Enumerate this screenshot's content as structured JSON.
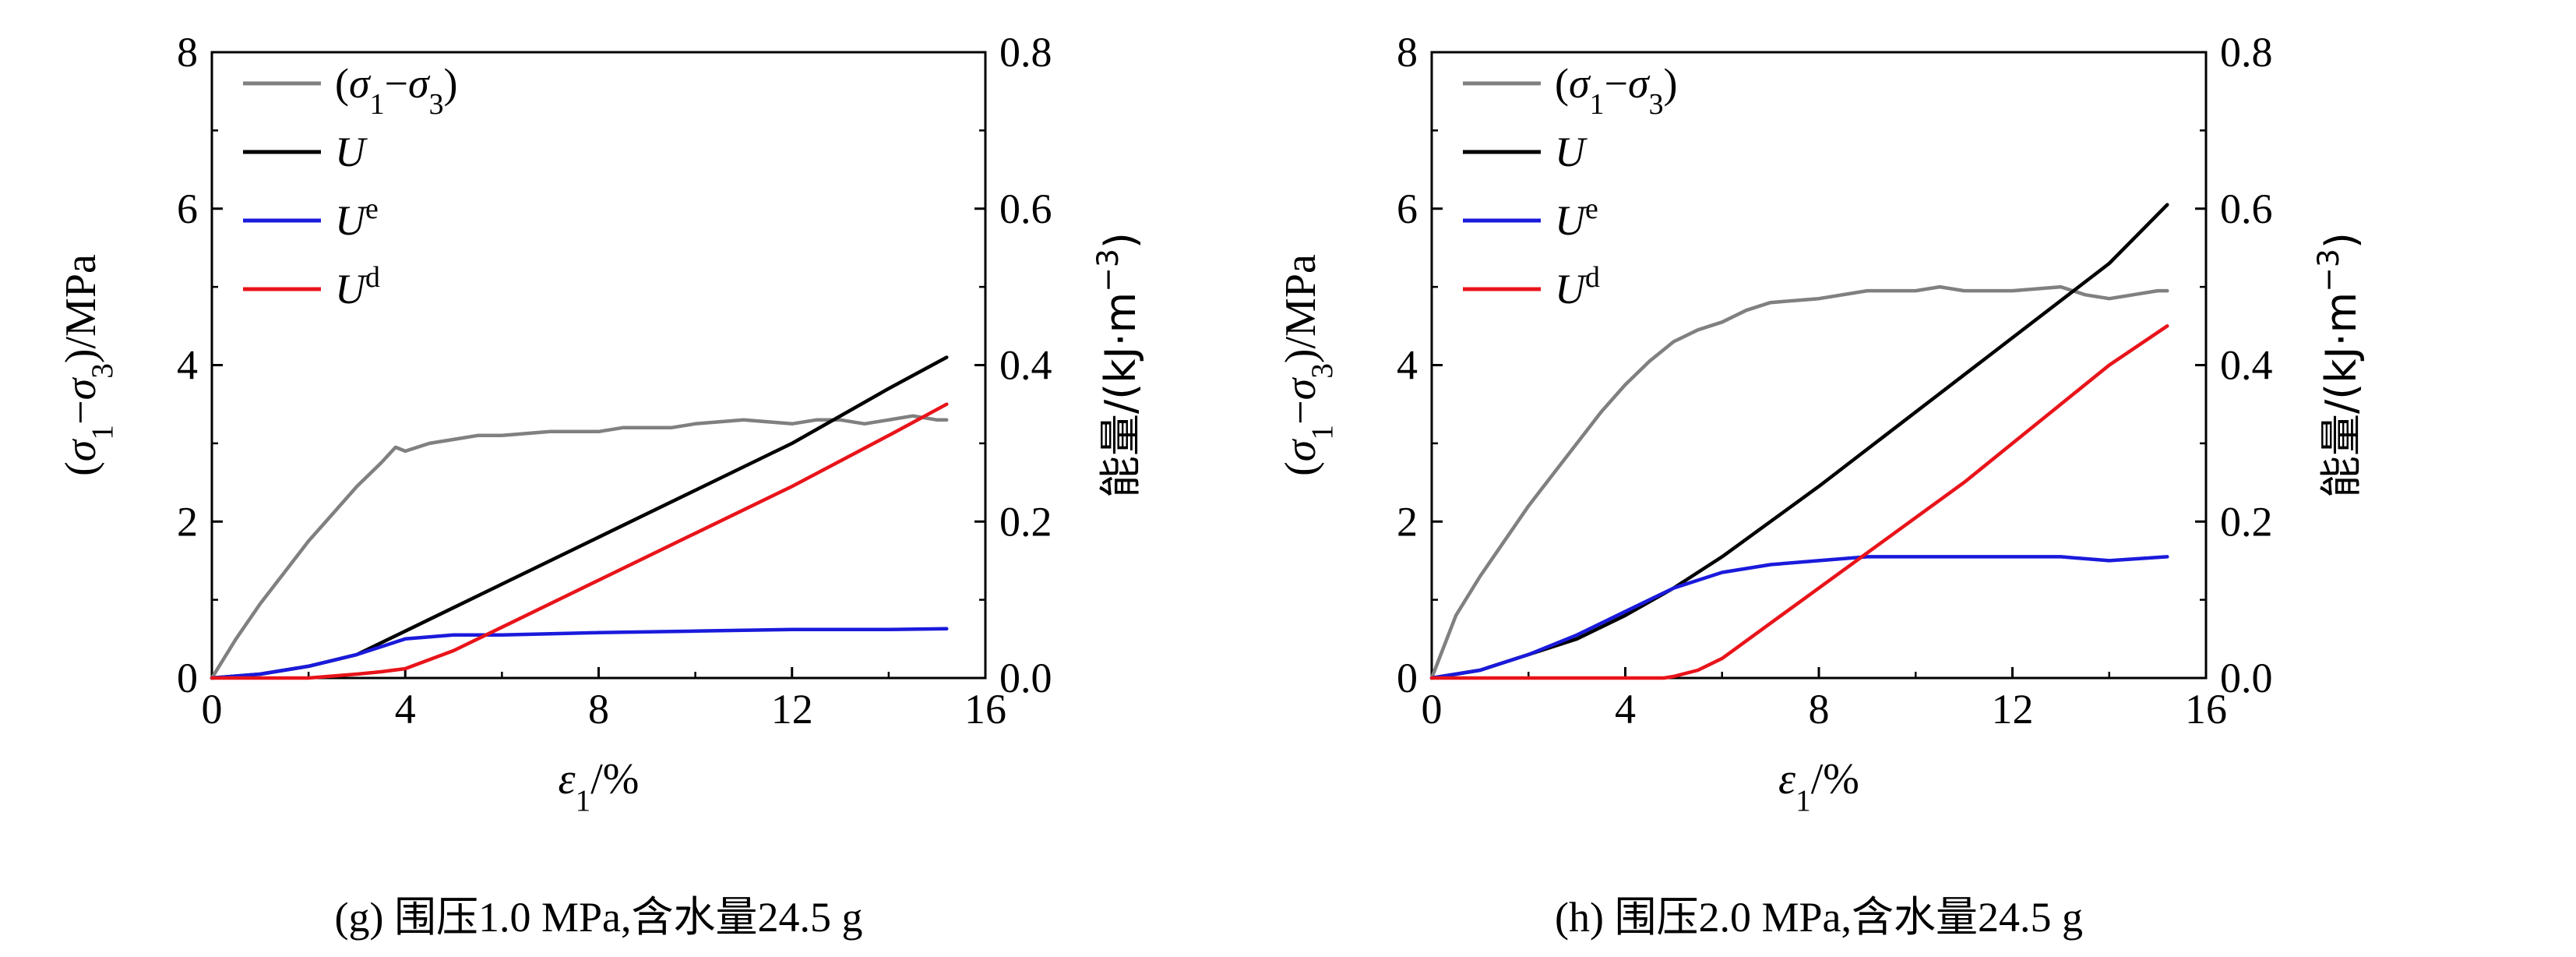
{
  "chart_data": [
    {
      "type": "line",
      "caption": "(g) 围压1.0 MPa,含水量24.5 g",
      "xlabel": "ε1/%",
      "ylabel_left": "(σ1−σ3)/MPa",
      "ylabel_right": "能量/(kJ·m−3)",
      "xlim": [
        0,
        16
      ],
      "ylim_left": [
        0,
        8
      ],
      "ylim_right": [
        0,
        0.8
      ],
      "x_ticks": [
        "0",
        "4",
        "8",
        "12",
        "16"
      ],
      "y_ticks_left": [
        "0",
        "2",
        "4",
        "6",
        "8"
      ],
      "y_ticks_right": [
        "0.0",
        "0.2",
        "0.4",
        "0.6",
        "0.8"
      ],
      "grid": false,
      "legend_position": "top-left",
      "series": [
        {
          "name": "(σ1−σ3)",
          "axis": "left",
          "color": "#808080",
          "x": [
            0,
            0.5,
            1,
            1.5,
            2,
            2.5,
            3,
            3.5,
            3.8,
            4,
            4.5,
            5,
            5.5,
            6,
            7,
            8,
            8.5,
            9,
            9.5,
            10,
            11,
            12,
            12.5,
            13,
            13.5,
            14,
            14.5,
            15,
            15.2
          ],
          "y": [
            0,
            0.5,
            0.95,
            1.35,
            1.75,
            2.1,
            2.45,
            2.75,
            2.95,
            2.9,
            3.0,
            3.05,
            3.1,
            3.1,
            3.15,
            3.15,
            3.2,
            3.2,
            3.2,
            3.25,
            3.3,
            3.25,
            3.3,
            3.3,
            3.25,
            3.3,
            3.35,
            3.3,
            3.3
          ]
        },
        {
          "name": "U",
          "axis": "right",
          "color": "#000000",
          "x": [
            0,
            1,
            2,
            3,
            4,
            5,
            6,
            8,
            10,
            12,
            14,
            15.2
          ],
          "y": [
            0,
            0.005,
            0.015,
            0.03,
            0.06,
            0.09,
            0.12,
            0.18,
            0.24,
            0.3,
            0.37,
            0.41
          ]
        },
        {
          "name": "Ue",
          "axis": "right",
          "color": "#1a1adc",
          "x": [
            0,
            1,
            2,
            3,
            4,
            5,
            6,
            8,
            10,
            12,
            14,
            15.2
          ],
          "y": [
            0,
            0.005,
            0.015,
            0.03,
            0.05,
            0.055,
            0.055,
            0.058,
            0.06,
            0.062,
            0.062,
            0.063
          ]
        },
        {
          "name": "Ud",
          "axis": "right",
          "color": "#e8141a",
          "x": [
            0,
            2,
            3,
            3.5,
            4,
            5,
            6,
            8,
            10,
            12,
            14,
            15.2
          ],
          "y": [
            0,
            0,
            0.005,
            0.008,
            0.012,
            0.035,
            0.065,
            0.125,
            0.185,
            0.245,
            0.31,
            0.35
          ]
        }
      ]
    },
    {
      "type": "line",
      "caption": "(h) 围压2.0 MPa,含水量24.5 g",
      "xlabel": "ε1/%",
      "ylabel_left": "(σ1−σ3)/MPa",
      "ylabel_right": "能量/(kJ·m−3)",
      "xlim": [
        0,
        16
      ],
      "ylim_left": [
        0,
        8
      ],
      "ylim_right": [
        0,
        0.8
      ],
      "x_ticks": [
        "0",
        "4",
        "8",
        "12",
        "16"
      ],
      "y_ticks_left": [
        "0",
        "2",
        "4",
        "6",
        "8"
      ],
      "y_ticks_right": [
        "0.0",
        "0.2",
        "0.4",
        "0.6",
        "0.8"
      ],
      "grid": false,
      "legend_position": "top-left",
      "series": [
        {
          "name": "(σ1−σ3)",
          "axis": "left",
          "color": "#808080",
          "x": [
            0,
            0.5,
            1,
            1.5,
            2,
            2.5,
            3,
            3.5,
            4,
            4.5,
            5,
            5.5,
            6,
            6.5,
            7,
            8,
            9,
            10,
            10.5,
            11,
            12,
            13,
            13.5,
            14,
            14.5,
            15,
            15.2
          ],
          "y": [
            0,
            0.8,
            1.3,
            1.75,
            2.2,
            2.6,
            3.0,
            3.4,
            3.75,
            4.05,
            4.3,
            4.45,
            4.55,
            4.7,
            4.8,
            4.85,
            4.95,
            4.95,
            5.0,
            4.95,
            4.95,
            5.0,
            4.9,
            4.85,
            4.9,
            4.95,
            4.95
          ]
        },
        {
          "name": "U",
          "axis": "right",
          "color": "#000000",
          "x": [
            0,
            1,
            2,
            3,
            4,
            5,
            6,
            8,
            10,
            12,
            14,
            15.2
          ],
          "y": [
            0,
            0.01,
            0.03,
            0.05,
            0.08,
            0.115,
            0.155,
            0.245,
            0.34,
            0.435,
            0.53,
            0.605
          ]
        },
        {
          "name": "Ue",
          "axis": "right",
          "color": "#1a1adc",
          "x": [
            0,
            1,
            2,
            3,
            4,
            5,
            6,
            7,
            8,
            9,
            10,
            11,
            12,
            13,
            14,
            15.2
          ],
          "y": [
            0,
            0.01,
            0.03,
            0.055,
            0.085,
            0.115,
            0.135,
            0.145,
            0.15,
            0.155,
            0.155,
            0.155,
            0.155,
            0.155,
            0.15,
            0.155
          ]
        },
        {
          "name": "Ud",
          "axis": "right",
          "color": "#e8141a",
          "x": [
            0,
            4.8,
            5,
            5.5,
            6,
            7,
            8,
            9,
            10,
            11,
            12,
            13,
            14,
            15.2
          ],
          "y": [
            0,
            0,
            0.002,
            0.01,
            0.025,
            0.07,
            0.115,
            0.16,
            0.205,
            0.25,
            0.3,
            0.35,
            0.4,
            0.45
          ]
        }
      ]
    }
  ]
}
